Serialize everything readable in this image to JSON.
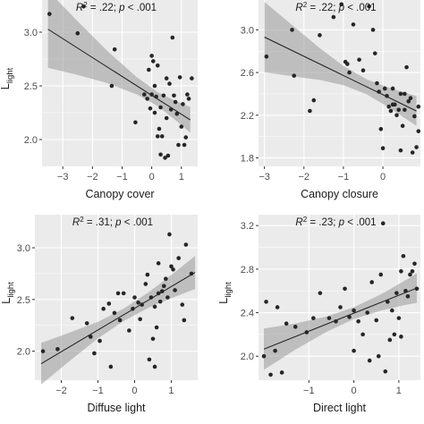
{
  "figure": {
    "background": "#ffffff",
    "panel_background": "#ebebeb",
    "gridline_color": "#ffffff",
    "point_color": "#262626",
    "line_color": "#1a1a1a",
    "band_color": "#999999",
    "ylabel_main": "L",
    "ylabel_sub": "light"
  },
  "chart_data": [
    {
      "type": "scatter",
      "xlabel": "Canopy cover",
      "ylabel": "Llight",
      "annotation": {
        "r2_prefix": "R",
        "r2_exp": "2",
        "r2_value": " = .22; ",
        "p_symbol": "p",
        "p_value": " < .001"
      },
      "xlim": [
        -3.7,
        1.55
      ],
      "ylim": [
        1.75,
        3.3
      ],
      "xticks": [
        -3,
        -2,
        -1,
        0,
        1
      ],
      "xtick_labels": [
        "−3",
        "−2",
        "−1",
        "0",
        "1"
      ],
      "yticks": [
        2.0,
        2.5,
        3.0
      ],
      "ytick_labels": [
        "2.0",
        "2.5",
        "3.0"
      ],
      "fit": {
        "slope": -0.176,
        "intercept": 2.412
      },
      "band": [
        [
          -3.5,
          0.36
        ],
        [
          -2.5,
          0.25
        ],
        [
          -1.5,
          0.15
        ],
        [
          -0.5,
          0.08
        ],
        [
          0.2,
          0.065
        ],
        [
          0.8,
          0.09
        ],
        [
          1.3,
          0.12
        ]
      ],
      "points": [
        [
          -3.45,
          3.17
        ],
        [
          -2.5,
          2.99
        ],
        [
          -2.3,
          3.24
        ],
        [
          -1.35,
          2.5
        ],
        [
          -1.25,
          2.84
        ],
        [
          -0.55,
          2.16
        ],
        [
          -0.15,
          2.38
        ],
        [
          -0.1,
          2.65
        ],
        [
          -0.05,
          2.29
        ],
        [
          0.0,
          2.78
        ],
        [
          0.05,
          2.73
        ],
        [
          0.1,
          2.25
        ],
        [
          0.1,
          2.5
        ],
        [
          0.15,
          2.4
        ],
        [
          0.2,
          2.69
        ],
        [
          0.2,
          2.03
        ],
        [
          0.25,
          2.1
        ],
        [
          0.3,
          1.86
        ],
        [
          0.35,
          2.03
        ],
        [
          0.4,
          2.41
        ],
        [
          0.45,
          1.83
        ],
        [
          0.5,
          2.57
        ],
        [
          0.5,
          2.2
        ],
        [
          0.55,
          1.85
        ],
        [
          0.6,
          2.52
        ],
        [
          0.65,
          2.28
        ],
        [
          0.7,
          2.95
        ],
        [
          0.75,
          2.41
        ],
        [
          0.8,
          2.35
        ],
        [
          0.85,
          2.24
        ],
        [
          0.9,
          1.95
        ],
        [
          0.95,
          2.58
        ],
        [
          1.0,
          2.12
        ],
        [
          1.05,
          2.33
        ],
        [
          1.1,
          1.95
        ],
        [
          1.15,
          2.02
        ],
        [
          1.2,
          2.42
        ],
        [
          1.25,
          2.38
        ],
        [
          1.35,
          2.57
        ],
        [
          0.3,
          2.3
        ],
        [
          0.0,
          2.42
        ],
        [
          -0.25,
          2.42
        ]
      ]
    },
    {
      "type": "scatter",
      "xlabel": "Canopy closure",
      "ylabel": "Llight",
      "annotation": {
        "r2_prefix": "R",
        "r2_exp": "2",
        "r2_value": " = .22; ",
        "p_symbol": "p",
        "p_value": " < .001"
      },
      "xlim": [
        -3.15,
        0.95
      ],
      "ylim": [
        1.72,
        3.28
      ],
      "xticks": [
        -3,
        -2,
        -1,
        0
      ],
      "xtick_labels": [
        "−3",
        "−2",
        "−1",
        "0"
      ],
      "yticks": [
        1.8,
        2.2,
        2.6,
        3.0
      ],
      "ytick_labels": [
        "1.8",
        "2.2",
        "2.6",
        "3.0"
      ],
      "fit": {
        "slope": -0.18,
        "intercept": 2.392
      },
      "band": [
        [
          -3.0,
          0.33
        ],
        [
          -2.3,
          0.24
        ],
        [
          -1.6,
          0.15
        ],
        [
          -1.0,
          0.09
        ],
        [
          -0.4,
          0.07
        ],
        [
          0.2,
          0.095
        ],
        [
          0.85,
          0.14
        ]
      ],
      "points": [
        [
          -2.95,
          2.75
        ],
        [
          -2.3,
          3.0
        ],
        [
          -2.25,
          2.57
        ],
        [
          -1.85,
          2.24
        ],
        [
          -1.75,
          2.34
        ],
        [
          -1.6,
          2.95
        ],
        [
          -1.25,
          3.12
        ],
        [
          -1.05,
          3.24
        ],
        [
          -0.95,
          2.7
        ],
        [
          -0.9,
          2.68
        ],
        [
          -0.85,
          2.6
        ],
        [
          -0.75,
          3.05
        ],
        [
          -0.6,
          2.72
        ],
        [
          -0.5,
          2.62
        ],
        [
          -0.35,
          3.22
        ],
        [
          -0.25,
          3.0
        ],
        [
          -0.2,
          2.78
        ],
        [
          -0.15,
          2.5
        ],
        [
          -0.1,
          2.42
        ],
        [
          -0.05,
          2.07
        ],
        [
          0.0,
          1.89
        ],
        [
          0.05,
          2.45
        ],
        [
          0.1,
          2.38
        ],
        [
          0.15,
          2.28
        ],
        [
          0.2,
          2.24
        ],
        [
          0.25,
          2.45
        ],
        [
          0.3,
          2.3
        ],
        [
          0.35,
          2.2
        ],
        [
          0.4,
          2.25
        ],
        [
          0.45,
          1.87
        ],
        [
          0.5,
          2.1
        ],
        [
          0.55,
          2.25
        ],
        [
          0.6,
          2.65
        ],
        [
          0.65,
          2.33
        ],
        [
          0.7,
          2.36
        ],
        [
          0.75,
          1.85
        ],
        [
          0.8,
          2.19
        ],
        [
          0.85,
          1.9
        ],
        [
          0.9,
          2.05
        ],
        [
          0.9,
          2.28
        ],
        [
          0.45,
          2.4
        ],
        [
          0.25,
          2.3
        ],
        [
          0.55,
          2.4
        ]
      ]
    },
    {
      "type": "scatter",
      "xlabel": "Diffuse light",
      "ylabel": "Llight",
      "annotation": {
        "r2_prefix": "R",
        "r2_exp": "2",
        "r2_value": " = .31; ",
        "p_symbol": "p",
        "p_value": " < .001"
      },
      "xlim": [
        -2.72,
        1.72
      ],
      "ylim": [
        1.72,
        3.32
      ],
      "xticks": [
        -2,
        -1,
        0,
        1
      ],
      "xtick_labels": [
        "−2",
        "−1",
        "0",
        "1"
      ],
      "yticks": [
        2.0,
        2.5,
        3.0
      ],
      "ytick_labels": [
        "2.0",
        "2.5",
        "3.0"
      ],
      "fit": {
        "slope": 0.21,
        "intercept": 2.415
      },
      "band": [
        [
          -2.55,
          0.2
        ],
        [
          -1.8,
          0.14
        ],
        [
          -1.0,
          0.08
        ],
        [
          -0.3,
          0.06
        ],
        [
          0.4,
          0.075
        ],
        [
          1.1,
          0.12
        ],
        [
          1.65,
          0.16
        ]
      ],
      "points": [
        [
          -2.5,
          2.0
        ],
        [
          -2.1,
          2.02
        ],
        [
          -1.7,
          2.32
        ],
        [
          -1.3,
          2.27
        ],
        [
          -1.2,
          2.14
        ],
        [
          -1.1,
          1.98
        ],
        [
          -0.95,
          2.1
        ],
        [
          -0.85,
          2.41
        ],
        [
          -0.7,
          2.46
        ],
        [
          -0.65,
          1.85
        ],
        [
          -0.55,
          2.37
        ],
        [
          -0.45,
          2.56
        ],
        [
          -0.4,
          2.3
        ],
        [
          -0.3,
          2.56
        ],
        [
          -0.15,
          2.2
        ],
        [
          -0.05,
          2.41
        ],
        [
          0.0,
          2.52
        ],
        [
          0.1,
          2.47
        ],
        [
          0.15,
          2.31
        ],
        [
          0.2,
          2.45
        ],
        [
          0.3,
          2.65
        ],
        [
          0.35,
          2.74
        ],
        [
          0.4,
          1.92
        ],
        [
          0.45,
          2.52
        ],
        [
          0.5,
          2.12
        ],
        [
          0.55,
          2.43
        ],
        [
          0.6,
          2.23
        ],
        [
          0.65,
          2.56
        ],
        [
          0.7,
          2.48
        ],
        [
          0.75,
          2.58
        ],
        [
          0.8,
          2.63
        ],
        [
          0.85,
          2.7
        ],
        [
          0.9,
          2.52
        ],
        [
          0.95,
          3.13
        ],
        [
          1.0,
          2.82
        ],
        [
          1.05,
          2.79
        ],
        [
          1.1,
          2.59
        ],
        [
          1.2,
          2.9
        ],
        [
          1.3,
          2.45
        ],
        [
          1.35,
          2.3
        ],
        [
          1.4,
          3.03
        ],
        [
          1.55,
          2.75
        ],
        [
          0.55,
          1.85
        ],
        [
          0.65,
          2.85
        ]
      ]
    },
    {
      "type": "scatter",
      "xlabel": "Direct light",
      "ylabel": "Llight",
      "annotation": {
        "r2_prefix": "R",
        "r2_exp": "2",
        "r2_value": " = .23; ",
        "p_symbol": "p",
        "p_value": " < .001"
      },
      "xlim": [
        -2.12,
        1.48
      ],
      "ylim": [
        1.78,
        3.3
      ],
      "xticks": [
        -1,
        0,
        1
      ],
      "xtick_labels": [
        "−1",
        "0",
        "1"
      ],
      "yticks": [
        2.0,
        2.4,
        2.8,
        3.2
      ],
      "ytick_labels": [
        "2.0",
        "2.4",
        "2.8",
        "3.2"
      ],
      "fit": {
        "slope": 0.165,
        "intercept": 2.395
      },
      "band": [
        [
          -2.0,
          0.19
        ],
        [
          -1.3,
          0.12
        ],
        [
          -0.6,
          0.07
        ],
        [
          0.0,
          0.055
        ],
        [
          0.6,
          0.075
        ],
        [
          1.1,
          0.11
        ],
        [
          1.4,
          0.135
        ]
      ],
      "points": [
        [
          -2.0,
          2.0
        ],
        [
          -1.95,
          2.5
        ],
        [
          -1.85,
          1.83
        ],
        [
          -1.75,
          2.05
        ],
        [
          -1.7,
          2.45
        ],
        [
          -1.6,
          1.85
        ],
        [
          -1.5,
          2.3
        ],
        [
          -1.3,
          2.27
        ],
        [
          -1.05,
          2.22
        ],
        [
          -0.9,
          2.35
        ],
        [
          -0.75,
          2.58
        ],
        [
          -0.55,
          2.35
        ],
        [
          -0.4,
          2.32
        ],
        [
          -0.3,
          2.45
        ],
        [
          -0.2,
          2.62
        ],
        [
          -0.1,
          2.36
        ],
        [
          0.0,
          2.42
        ],
        [
          0.0,
          2.05
        ],
        [
          0.1,
          2.32
        ],
        [
          0.2,
          2.2
        ],
        [
          0.3,
          2.4
        ],
        [
          0.4,
          2.68
        ],
        [
          0.5,
          2.33
        ],
        [
          0.55,
          2.0
        ],
        [
          0.6,
          2.75
        ],
        [
          0.7,
          1.86
        ],
        [
          0.75,
          2.5
        ],
        [
          0.8,
          2.15
        ],
        [
          0.85,
          2.42
        ],
        [
          0.9,
          2.2
        ],
        [
          0.95,
          2.58
        ],
        [
          1.0,
          2.35
        ],
        [
          1.05,
          2.78
        ],
        [
          1.1,
          2.92
        ],
        [
          1.15,
          2.6
        ],
        [
          1.2,
          2.55
        ],
        [
          1.25,
          2.75
        ],
        [
          1.3,
          2.78
        ],
        [
          1.35,
          2.85
        ],
        [
          1.4,
          2.62
        ],
        [
          0.65,
          3.22
        ],
        [
          1.05,
          2.18
        ],
        [
          0.35,
          1.96
        ]
      ]
    }
  ]
}
